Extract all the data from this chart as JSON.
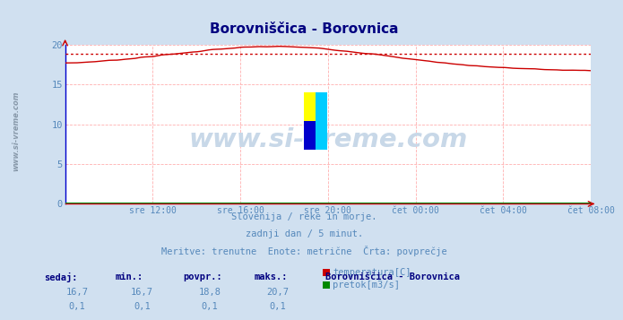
{
  "title": "Borovniščica - Borovnica",
  "title_color": "#000080",
  "bg_color": "#d0e0f0",
  "plot_bg_color": "#ffffff",
  "grid_color": "#ffb0b0",
  "xlabel_ticks": [
    "sre 12:00",
    "sre 16:00",
    "sre 20:00",
    "čet 00:00",
    "čet 04:00",
    "čet 08:00"
  ],
  "tick_x_norm": [
    0.1667,
    0.3333,
    0.5,
    0.6667,
    0.8333,
    1.0
  ],
  "ylim": [
    0,
    20
  ],
  "yticks": [
    0,
    5,
    10,
    15,
    20
  ],
  "temp_avg": 18.8,
  "temp_min": 16.7,
  "temp_max": 20.7,
  "temp_current": 16.7,
  "flow_current": 0.1,
  "flow_min": 0.1,
  "flow_avg": 0.1,
  "flow_max": 0.1,
  "subtitle1": "Slovenija / reke in morje.",
  "subtitle2": "zadnji dan / 5 minut.",
  "subtitle3": "Meritve: trenutne  Enote: metrične  Črta: povprečje",
  "text_color": "#5588bb",
  "col_header_color": "#000080",
  "temp_line_color": "#cc0000",
  "flow_line_color": "#008800",
  "avg_line_color": "#cc0000",
  "watermark": "www.si-vreme.com",
  "watermark_color": "#c8d8e8",
  "left_text_color": "#8899aa",
  "spine_color": "#0000cc",
  "axis_color": "#cc0000"
}
